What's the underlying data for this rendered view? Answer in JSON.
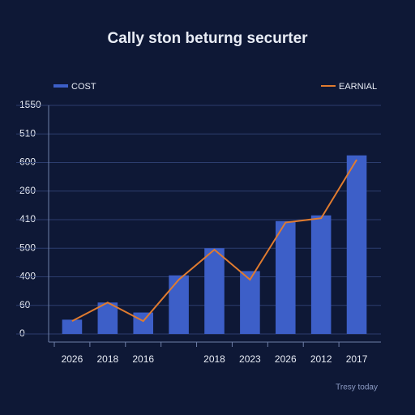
{
  "chart_data": {
    "type": "bar",
    "title": "Cally ston beturng securter",
    "footer": "Tresy today",
    "categories": [
      "2026",
      "2018",
      "2016",
      null,
      "2018",
      "2023",
      "2026",
      "2012",
      "2017"
    ],
    "series": [
      {
        "name": "COST",
        "type": "bar",
        "color": "#3d5fc8",
        "values": [
          0.5,
          1.1,
          0.75,
          2.05,
          3.0,
          2.2,
          3.95,
          4.15,
          6.25
        ]
      },
      {
        "name": "EARNIAL",
        "type": "line",
        "color": "#e07b2f",
        "values": [
          0.45,
          1.1,
          0.45,
          1.9,
          2.95,
          1.9,
          3.9,
          4.05,
          6.1
        ]
      }
    ],
    "ylim": [
      0,
      8
    ],
    "yticks": [
      {
        "value": 0,
        "label": "0"
      },
      {
        "value": 1,
        "label": "60"
      },
      {
        "value": 2,
        "label": "400"
      },
      {
        "value": 3,
        "label": "500"
      },
      {
        "value": 4,
        "label": "410"
      },
      {
        "value": 5,
        "label": "260"
      },
      {
        "value": 6,
        "label": "600"
      },
      {
        "value": 7,
        "label": "510"
      },
      {
        "value": 8,
        "label": "1550"
      }
    ],
    "grid": true
  }
}
